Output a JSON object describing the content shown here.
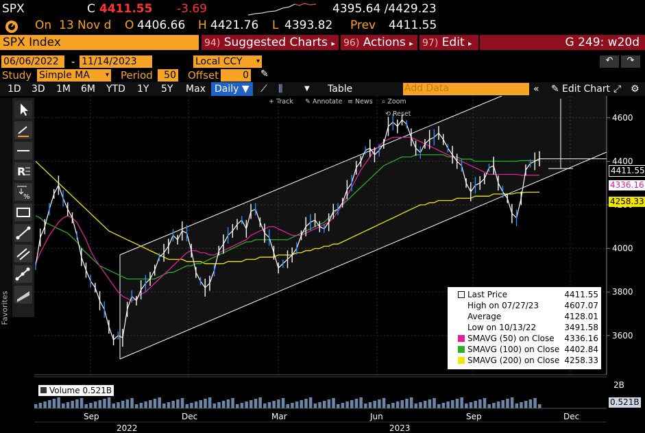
{
  "ticker": {
    "symbol": "SPX",
    "c_label": "C",
    "last": "4411.55",
    "change": "-3.69",
    "range": "4395.64 /4429.23"
  },
  "quote": {
    "on_label": "On",
    "date": "13 Nov d",
    "o_label": "O",
    "open": "4406.66",
    "h_label": "H",
    "high": "4421.76",
    "l_label": "L",
    "low": "4393.82",
    "prev_label": "Prev",
    "prev": "4411.55"
  },
  "menubar": {
    "index": "SPX Index",
    "suggested_num": "94)",
    "suggested": "Suggested Charts",
    "actions_num": "96)",
    "actions": "Actions",
    "edit_num": "97)",
    "edit": "Edit",
    "right": "G 249: w20d"
  },
  "dates": {
    "start": "06/06/2022",
    "sep": "-",
    "end": "11/14/2023",
    "ccy": "Local CCY"
  },
  "study": {
    "label": "Study",
    "value": "Simple MA",
    "period_label": "Period",
    "period": "50",
    "offset_label": "Offset",
    "offset": "0"
  },
  "timebar": {
    "items": [
      "1D",
      "3D",
      "1M",
      "6M",
      "YTD",
      "1Y",
      "5Y",
      "Max"
    ],
    "daily": "Daily ▼",
    "table": "Table",
    "add_data": "Add Data",
    "edit_chart": "Edit Chart"
  },
  "subtools": {
    "track": "Track",
    "annotate": "Annotate",
    "news": "News",
    "zoom": "Zoom",
    "reset": "Reset"
  },
  "favorites": "Favorites",
  "legend": {
    "rows": [
      {
        "k": "Last Price",
        "v": "4411.55",
        "color": "#ffffff"
      },
      {
        "k": "High on 07/27/23",
        "v": "4607.07",
        "color": ""
      },
      {
        "k": "Average",
        "v": "4128.01",
        "color": ""
      },
      {
        "k": "Low on 10/13/22",
        "v": "3491.58",
        "color": ""
      },
      {
        "k": "SMAVG (50)  on Close",
        "v": "4336.16",
        "color": "#e0219a"
      },
      {
        "k": "SMAVG (100)  on Close",
        "v": "4402.84",
        "color": "#27b024"
      },
      {
        "k": "SMAVG (200)  on Close",
        "v": "4258.33",
        "color": "#f2e600"
      }
    ]
  },
  "volume": {
    "label": "Volume",
    "value": "0.521B",
    "axis_top": "2B",
    "tag": "0.521B"
  },
  "tags": {
    "last": "4411.55",
    "sma50": "4336.16",
    "sma200": "4258.33"
  },
  "chart_data": {
    "type": "line",
    "title": "SPX Index",
    "yticks": [
      3600,
      3800,
      4000,
      4200,
      4400,
      4600
    ],
    "ylim": [
      3420,
      4700
    ],
    "xticks": [
      {
        "label": "Sep"
      },
      {
        "label": "Dec"
      },
      {
        "label": "Mar"
      },
      {
        "label": "Jun"
      },
      {
        "label": "Sep"
      },
      {
        "label": "Dec"
      }
    ],
    "years": [
      "2022",
      "2023"
    ],
    "series": [
      {
        "name": "Last Price",
        "color": "#ffffff",
        "values": [
          3920,
          4050,
          4100,
          4180,
          4250,
          4290,
          4230,
          4180,
          4140,
          4060,
          3960,
          3900,
          3850,
          3820,
          3760,
          3720,
          3640,
          3580,
          3600,
          3590,
          3720,
          3780,
          3760,
          3810,
          3840,
          3860,
          3900,
          3960,
          3980,
          4010,
          4060,
          4040,
          4080,
          4070,
          3990,
          3890,
          3850,
          3820,
          3840,
          3900,
          3990,
          4020,
          4060,
          4080,
          4110,
          4130,
          4090,
          4170,
          4180,
          4120,
          4070,
          4050,
          3980,
          3910,
          3930,
          3950,
          3970,
          4000,
          4060,
          4100,
          4120,
          4130,
          4100,
          4090,
          4120,
          4170,
          4180,
          4210,
          4270,
          4300,
          4370,
          4400,
          4450,
          4460,
          4430,
          4450,
          4480,
          4560,
          4580,
          4560,
          4590,
          4570,
          4510,
          4460,
          4440,
          4480,
          4500,
          4510,
          4530,
          4500,
          4460,
          4430,
          4400,
          4380,
          4300,
          4260,
          4290,
          4300,
          4320,
          4370,
          4380,
          4300,
          4260,
          4230,
          4160,
          4140,
          4230,
          4360,
          4390,
          4400,
          4411.55
        ]
      },
      {
        "name": "SMAVG (50)",
        "color": "#e0219a",
        "values": [
          3930,
          3980,
          4020,
          4060,
          4090,
          4120,
          4140,
          4150,
          4140,
          4120,
          4080,
          4040,
          3990,
          3950,
          3920,
          3890,
          3860,
          3830,
          3800,
          3780,
          3770,
          3760,
          3770,
          3790,
          3800,
          3820,
          3840,
          3860,
          3880,
          3900,
          3920,
          3940,
          3960,
          3980,
          3990,
          3990,
          3980,
          3980,
          3970,
          3970,
          3980,
          3990,
          4000,
          4010,
          4020,
          4030,
          4040,
          4060,
          4070,
          4080,
          4090,
          4100,
          4100,
          4090,
          4080,
          4070,
          4060,
          4060,
          4060,
          4070,
          4080,
          4090,
          4100,
          4110,
          4120,
          4140,
          4170,
          4200,
          4240,
          4280,
          4320,
          4360,
          4390,
          4420,
          4450,
          4470,
          4490,
          4500,
          4510,
          4510,
          4510,
          4510,
          4510,
          4500,
          4490,
          4480,
          4470,
          4460,
          4450,
          4440,
          4430,
          4420,
          4410,
          4400,
          4390,
          4380,
          4370,
          4360,
          4350,
          4340,
          4340,
          4340,
          4340,
          4340,
          4340,
          4340,
          4336,
          4336,
          4336,
          4336,
          4336.16
        ]
      },
      {
        "name": "SMAVG (100)",
        "color": "#27b024",
        "values": [
          4150,
          4140,
          4120,
          4110,
          4100,
          4090,
          4080,
          4070,
          4050,
          4030,
          4000,
          3980,
          3960,
          3940,
          3920,
          3910,
          3900,
          3890,
          3880,
          3870,
          3860,
          3860,
          3860,
          3860,
          3860,
          3860,
          3860,
          3870,
          3880,
          3890,
          3890,
          3900,
          3910,
          3920,
          3920,
          3930,
          3930,
          3940,
          3950,
          3960,
          3970,
          3980,
          3990,
          4000,
          4010,
          4020,
          4030,
          4030,
          4040,
          4040,
          4040,
          4040,
          4040,
          4040,
          4040,
          4040,
          4050,
          4060,
          4070,
          4080,
          4090,
          4100,
          4110,
          4120,
          4140,
          4160,
          4180,
          4200,
          4220,
          4240,
          4260,
          4280,
          4300,
          4320,
          4340,
          4360,
          4380,
          4390,
          4400,
          4410,
          4420,
          4420,
          4420,
          4430,
          4430,
          4430,
          4430,
          4430,
          4430,
          4430,
          4420,
          4420,
          4420,
          4410,
          4410,
          4410,
          4400,
          4400,
          4400,
          4400,
          4400,
          4400,
          4400,
          4400,
          4400,
          4400,
          4403,
          4403,
          4403,
          4403,
          4402.84
        ]
      },
      {
        "name": "SMAVG (200)",
        "color": "#f2e600",
        "values": [
          4400,
          4380,
          4360,
          4340,
          4320,
          4300,
          4280,
          4260,
          4240,
          4220,
          4200,
          4180,
          4160,
          4140,
          4120,
          4100,
          4080,
          4070,
          4060,
          4050,
          4040,
          4030,
          4020,
          4010,
          4000,
          3990,
          3980,
          3970,
          3960,
          3950,
          3950,
          3950,
          3950,
          3940,
          3940,
          3940,
          3940,
          3930,
          3930,
          3930,
          3930,
          3930,
          3940,
          3940,
          3940,
          3940,
          3950,
          3950,
          3950,
          3960,
          3960,
          3960,
          3960,
          3970,
          3970,
          3970,
          3970,
          3980,
          3980,
          3990,
          3990,
          4000,
          4000,
          4010,
          4010,
          4020,
          4020,
          4030,
          4040,
          4050,
          4060,
          4070,
          4080,
          4090,
          4100,
          4110,
          4120,
          4130,
          4140,
          4150,
          4160,
          4170,
          4180,
          4190,
          4200,
          4200,
          4210,
          4210,
          4220,
          4220,
          4220,
          4220,
          4230,
          4230,
          4230,
          4230,
          4240,
          4240,
          4240,
          4240,
          4250,
          4250,
          4250,
          4250,
          4250,
          4255,
          4255,
          4258,
          4258,
          4258,
          4258.33
        ]
      }
    ]
  }
}
